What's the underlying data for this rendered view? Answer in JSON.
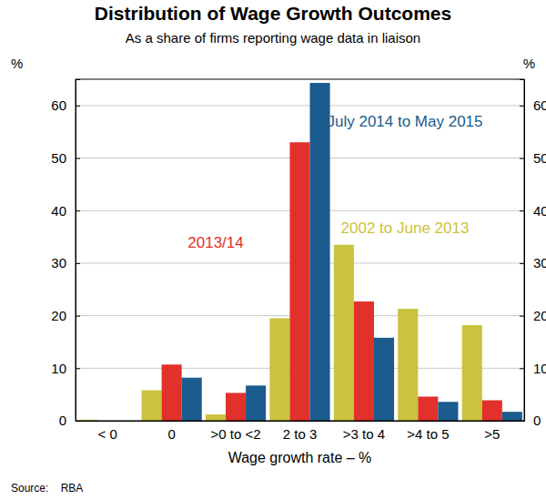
{
  "chart_data": {
    "type": "bar",
    "title": "Distribution of Wage Growth Outcomes",
    "subtitle": "As a share of firms reporting wage data in liaison",
    "x_label": "Wage growth rate – %",
    "y_label": "%",
    "source": "Source:    RBA",
    "categories": [
      "< 0",
      "0",
      ">0 to <2",
      "2 to 3",
      ">3 to 4",
      ">4 to 5",
      ">5"
    ],
    "series": [
      {
        "name": "2002 to June 2013",
        "color": "#cbc23d",
        "values": [
          0.2,
          5.8,
          1.2,
          19.5,
          33.5,
          21.3,
          18.2
        ]
      },
      {
        "name": "2013/14",
        "color": "#e2302b",
        "values": [
          0,
          10.7,
          5.3,
          53,
          22.7,
          4.6,
          3.9
        ]
      },
      {
        "name": "July 2014 to May 2015",
        "color": "#1b5b8e",
        "values": [
          0,
          8.2,
          6.7,
          64.3,
          15.8,
          3.6,
          1.7
        ]
      }
    ],
    "ylim": [
      0,
      65
    ],
    "yticks": [
      0,
      10,
      20,
      30,
      40,
      50,
      60
    ],
    "grid": true
  }
}
